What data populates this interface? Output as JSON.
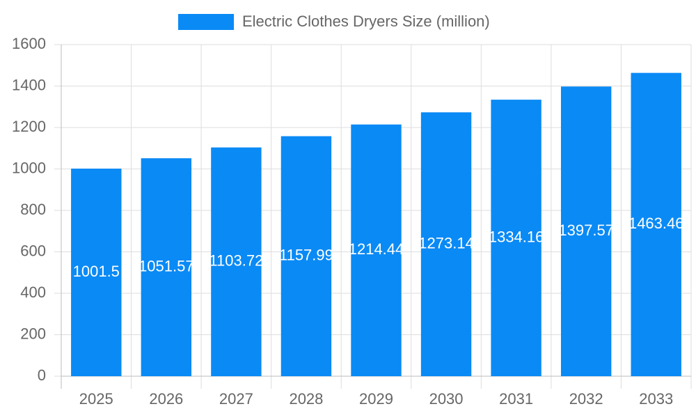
{
  "chart_data": {
    "type": "bar",
    "legend": "Electric Clothes Dryers Size (million)",
    "categories": [
      "2025",
      "2026",
      "2027",
      "2028",
      "2029",
      "2030",
      "2031",
      "2032",
      "2033"
    ],
    "values": [
      1001.5,
      1051.57,
      1103.72,
      1157.99,
      1214.44,
      1273.14,
      1334.16,
      1397.57,
      1463.46
    ],
    "color": "#0a8af5",
    "ylim": [
      0,
      1600
    ],
    "yticks": [
      0,
      200,
      400,
      600,
      800,
      1000,
      1200,
      1400,
      1600
    ],
    "grid": true
  }
}
